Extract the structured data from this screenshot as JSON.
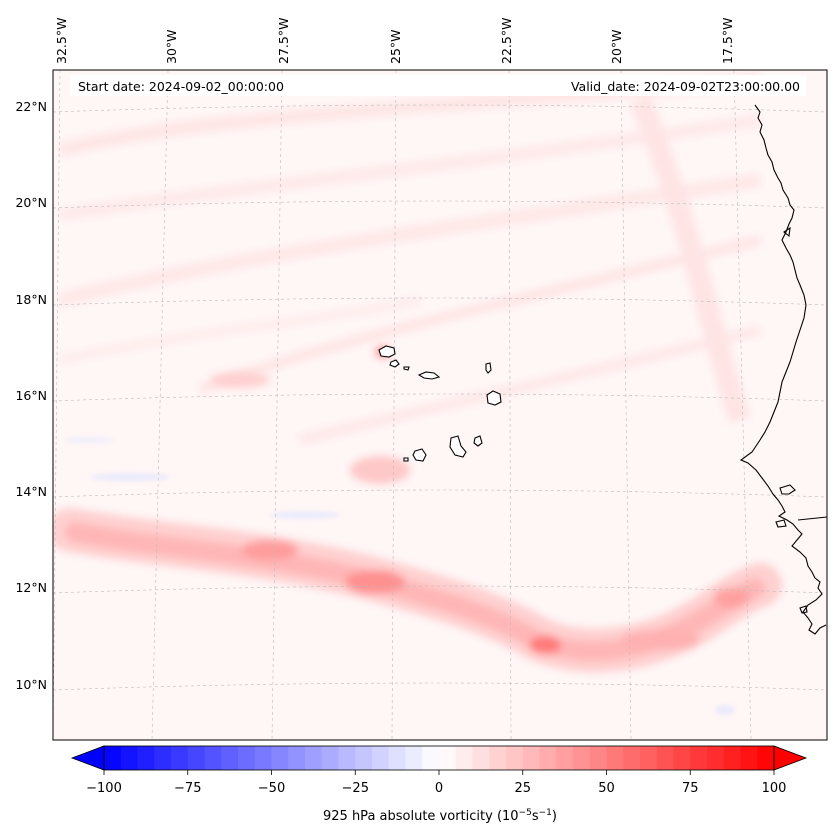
{
  "header": {
    "start_date": "Start date: 2024-09-02_00:00:00",
    "valid_date": "Valid_date: 2024-09-02T23:00:00.00"
  },
  "longitude_labels": [
    "32.5°W",
    "30°W",
    "27.5°W",
    "25°W",
    "22.5°W",
    "20°W",
    "17.5°W"
  ],
  "latitude_labels": [
    "22°N",
    "20°N",
    "18°N",
    "16°N",
    "14°N",
    "12°N",
    "10°N"
  ],
  "colorbar": {
    "label_prefix": "925 hPa absolute vorticity (10",
    "label_exp1": "−5",
    "label_mid": "s",
    "label_exp2": "−1",
    "label_suffix": ")",
    "min": -100,
    "max": 100,
    "ticks": [
      "−100",
      "−75",
      "−50",
      "−25",
      "0",
      "25",
      "50",
      "75",
      "100"
    ],
    "low_color": "#0000ff",
    "mid_color": "#ffffff",
    "high_color": "#ff0000"
  },
  "colors": {
    "background_tint": "#fff5f5",
    "coastline": "#000000",
    "gridline": "#bbbbbb"
  }
}
